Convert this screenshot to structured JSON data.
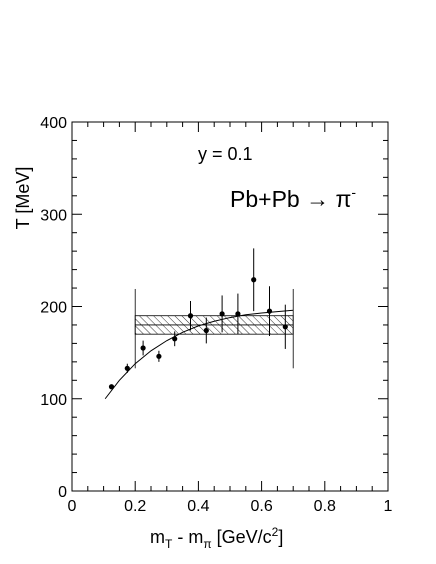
{
  "chart_data": {
    "type": "scatter",
    "xlabel": "m_T - m_π [GeV/c^2]",
    "xlabel_parts": {
      "m": "m",
      "T": "T",
      "minus": " - ",
      "m2": "m",
      "pi": "π",
      "unit": " [GeV/c",
      "sup": "2",
      "close": "]"
    },
    "ylabel": "T [MeV]",
    "annotation": "y = 0.1",
    "reaction": "Pb+Pb → π⁻",
    "reaction_parts": {
      "lhs": "Pb+Pb ",
      "arrow": "→",
      "pi": " π",
      "sup": "-"
    },
    "xlim": [
      0,
      1
    ],
    "ylim": [
      0,
      400
    ],
    "x_ticks": [
      0,
      0.2,
      0.4,
      0.6,
      0.8,
      1
    ],
    "x_tick_labels": [
      "0",
      "0.2",
      "0.4",
      "0.6",
      "0.8",
      "1"
    ],
    "y_ticks": [
      0,
      100,
      200,
      300,
      400
    ],
    "y_tick_labels": [
      "0",
      "100",
      "200",
      "300",
      "400"
    ],
    "grid": false,
    "points": [
      {
        "x": 0.125,
        "y": 113,
        "err": 0
      },
      {
        "x": 0.175,
        "y": 133,
        "err": 5
      },
      {
        "x": 0.225,
        "y": 155,
        "err": 8
      },
      {
        "x": 0.275,
        "y": 146,
        "err": 6
      },
      {
        "x": 0.325,
        "y": 165,
        "err": 8
      },
      {
        "x": 0.375,
        "y": 190,
        "err": 16
      },
      {
        "x": 0.425,
        "y": 174,
        "err": 14
      },
      {
        "x": 0.475,
        "y": 192,
        "err": 20
      },
      {
        "x": 0.525,
        "y": 192,
        "err": 22
      },
      {
        "x": 0.575,
        "y": 229,
        "err": 34
      },
      {
        "x": 0.625,
        "y": 195,
        "err": 27
      },
      {
        "x": 0.675,
        "y": 178,
        "err": 24
      }
    ],
    "band": {
      "x_start": 0.2,
      "x_end": 0.7,
      "y_low": 170,
      "y_high": 190,
      "y_mean": 180,
      "err_low": 133,
      "err_high": 219
    },
    "fit_curve": [
      [
        0.105,
        100
      ],
      [
        0.15,
        120
      ],
      [
        0.2,
        138
      ],
      [
        0.25,
        152
      ],
      [
        0.3,
        163
      ],
      [
        0.35,
        172
      ],
      [
        0.4,
        179
      ],
      [
        0.45,
        184
      ],
      [
        0.5,
        188
      ],
      [
        0.55,
        191
      ],
      [
        0.6,
        193
      ],
      [
        0.65,
        194.5
      ],
      [
        0.7,
        196
      ]
    ]
  }
}
